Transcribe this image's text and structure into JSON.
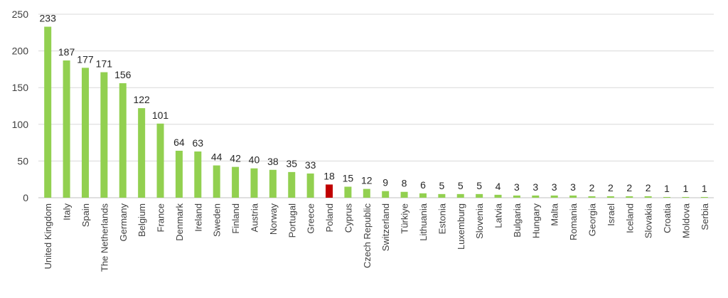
{
  "chart_data": {
    "type": "bar",
    "title": "",
    "xlabel": "",
    "ylabel": "",
    "ylim": [
      0,
      250
    ],
    "yticks": [
      0,
      50,
      100,
      150,
      200,
      250
    ],
    "grid": true,
    "legend": "none",
    "colors": {
      "default": "#92d050",
      "highlight": "#c00000",
      "grid": "#d9d9d9",
      "text": "#404040"
    },
    "highlight": "Poland",
    "categories": [
      "United Kingdom",
      "Italy",
      "Spain",
      "The Netherlands",
      "Germany",
      "Belgium",
      "France",
      "Denmark",
      "Ireland",
      "Sweden",
      "Finland",
      "Austria",
      "Norway",
      "Portugal",
      "Greece",
      "Poland",
      "Cyprus",
      "Czech Republic",
      "Switzerland",
      "Türkiye",
      "Lithuania",
      "Estonia",
      "Luxemburg",
      "Slovenia",
      "Latvia",
      "Bulgaria",
      "Hungary",
      "Malta",
      "Romania",
      "Georgia",
      "Israel",
      "Iceland",
      "Slovakia",
      "Croatia",
      "Moldova",
      "Serbia"
    ],
    "values": [
      233,
      187,
      177,
      171,
      156,
      122,
      101,
      64,
      63,
      44,
      42,
      40,
      38,
      35,
      33,
      18,
      15,
      12,
      9,
      8,
      6,
      5,
      5,
      5,
      4,
      3,
      3,
      3,
      3,
      2,
      2,
      2,
      2,
      1,
      1,
      1
    ]
  }
}
